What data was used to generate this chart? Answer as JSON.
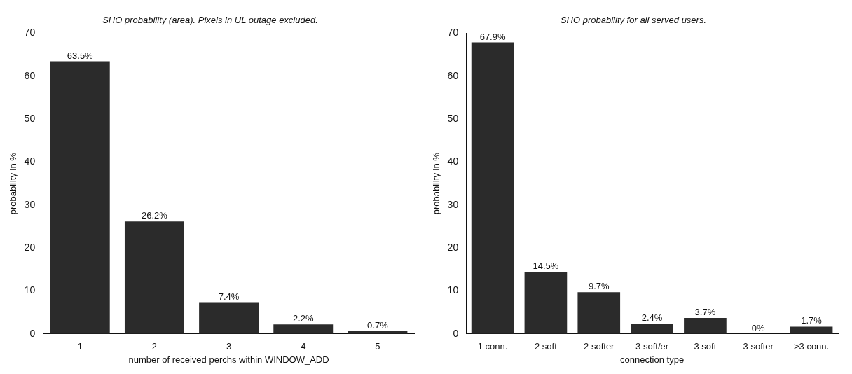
{
  "chart_data": [
    {
      "type": "bar",
      "title": "SHO probability (area). Pixels in UL outage excluded.",
      "xlabel": "number of received perchs within WINDOW_ADD",
      "ylabel": "probability in %",
      "categories": [
        "1",
        "2",
        "3",
        "4",
        "5"
      ],
      "values": [
        63.5,
        26.2,
        7.4,
        2.2,
        0.7
      ],
      "value_labels": [
        "63.5%",
        "26.2%",
        "7.4%",
        "2.2%",
        "0.7%"
      ],
      "color": "#2b2b2b",
      "ylim": [
        0,
        70
      ],
      "yticks": [
        0,
        10,
        20,
        30,
        40,
        50,
        60,
        70
      ],
      "grid": false
    },
    {
      "type": "bar",
      "title": "SHO probability for all served users.",
      "xlabel": "connection type",
      "ylabel": "probability in %",
      "categories": [
        "1 conn.",
        "2 soft",
        "2 softer",
        "3 soft/er",
        "3 soft",
        "3 softer",
        ">3 conn."
      ],
      "values": [
        67.9,
        14.5,
        9.7,
        2.4,
        3.7,
        0,
        1.7
      ],
      "value_labels": [
        "67.9%",
        "14.5%",
        "9.7%",
        "2.4%",
        "3.7%",
        "0%",
        "1.7%"
      ],
      "color": "#2b2b2b",
      "ylim": [
        0,
        70
      ],
      "yticks": [
        0,
        10,
        20,
        30,
        40,
        50,
        60,
        70
      ],
      "grid": false
    }
  ]
}
